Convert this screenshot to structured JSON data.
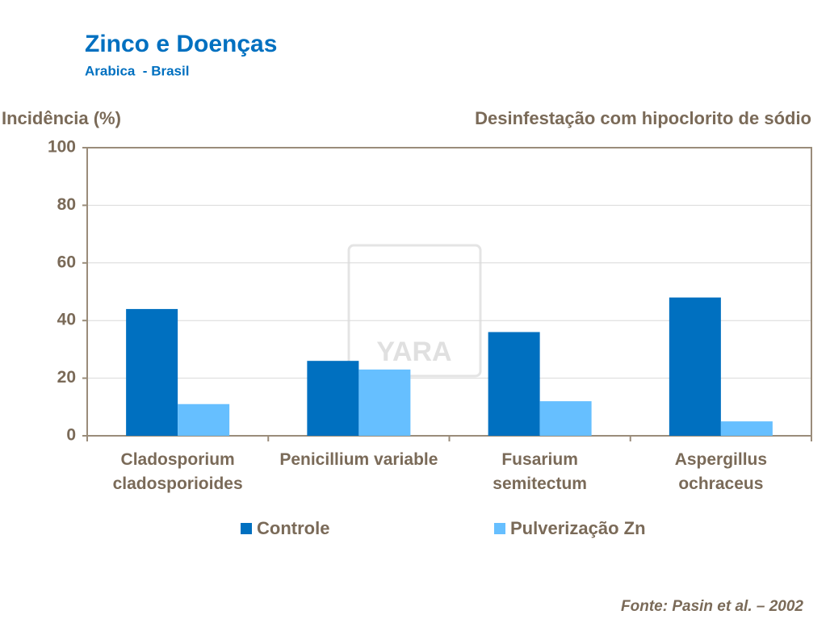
{
  "chart_data": {
    "type": "bar",
    "title": "Zinco e Doenças",
    "subtitle": "Arabica  - Brasil",
    "y_label": "Incidência (%)",
    "annotation": "Desinfestação com hipoclorito de sódio",
    "source": "Fonte: Pasin et al. – 2002",
    "watermark": "YARA",
    "categories": [
      "Cladosporium cladosporioides",
      "Penicillium variable",
      "Fusarium semitectum",
      "Aspergillus ochraceus"
    ],
    "series": [
      {
        "name": "Controle",
        "color": "#0070c0",
        "values": [
          44,
          26,
          36,
          48
        ]
      },
      {
        "name": "Pulverização Zn",
        "color": "#66bfff",
        "values": [
          11,
          23,
          12,
          5
        ]
      }
    ],
    "ylim": [
      0,
      100
    ],
    "yticks": [
      0,
      20,
      40,
      60,
      80,
      100
    ],
    "grid": true
  }
}
